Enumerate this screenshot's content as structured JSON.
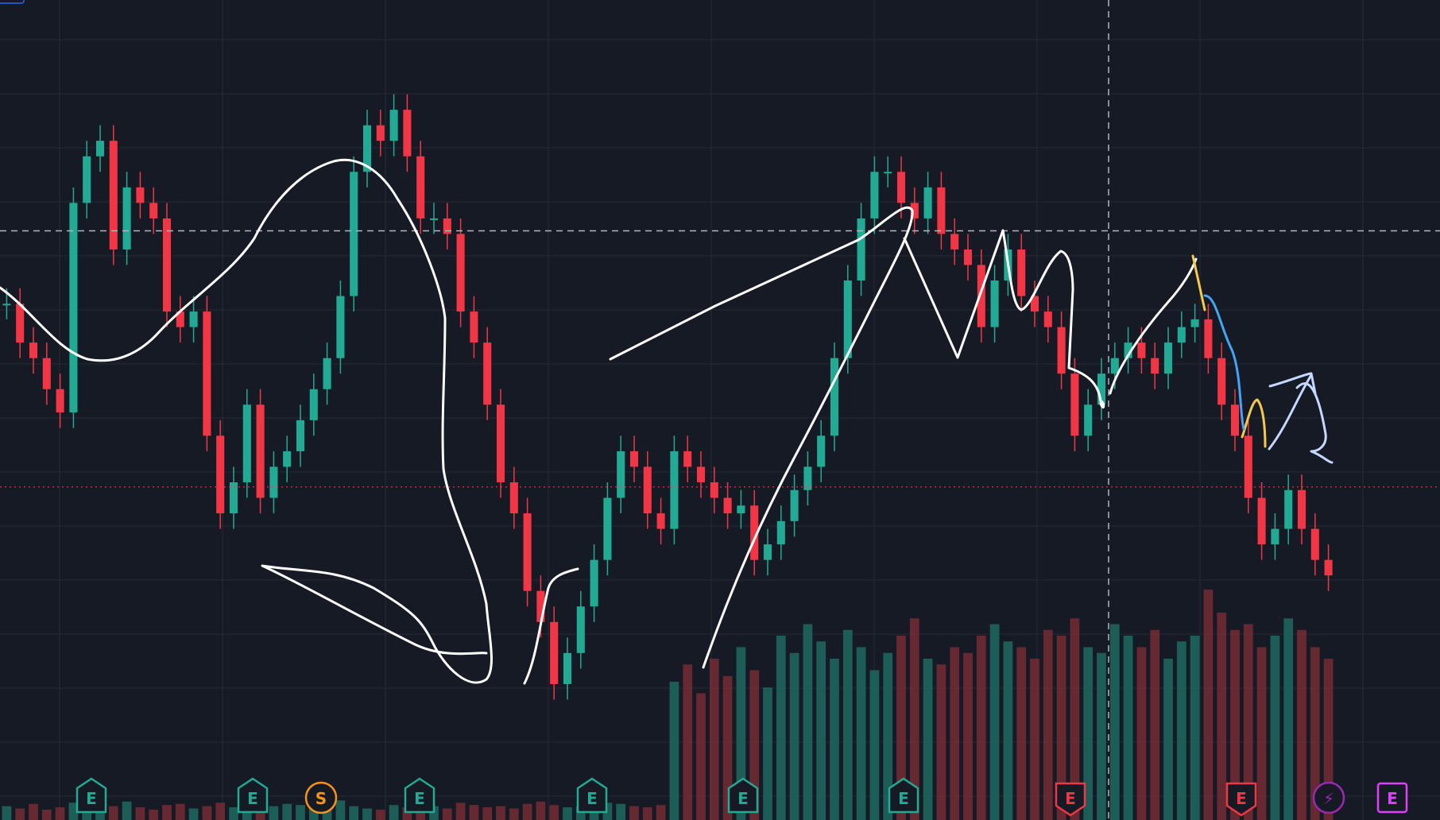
{
  "chart_data": {
    "type": "candlestick",
    "x": [
      0,
      1,
      2,
      3,
      4,
      5,
      6,
      7,
      8,
      9,
      10,
      11,
      12,
      13,
      14,
      15,
      16,
      17,
      18,
      19,
      20,
      21,
      22,
      23,
      24,
      25,
      26,
      27,
      28,
      29,
      30,
      31,
      32,
      33,
      34,
      35,
      36,
      37,
      38,
      39,
      40,
      41,
      42,
      43,
      44,
      45,
      46,
      47,
      48,
      49,
      50,
      51,
      52,
      53,
      54,
      55,
      56,
      57,
      58,
      59,
      60,
      61,
      62,
      63,
      64,
      65,
      66,
      67,
      68,
      69,
      70,
      71,
      72,
      73,
      74,
      75,
      76,
      77,
      78,
      79,
      80,
      81,
      82,
      83,
      84,
      85,
      86,
      87,
      88,
      89,
      90,
      91,
      92,
      93,
      94,
      95,
      96,
      97,
      98,
      99
    ],
    "close": [
      265,
      240,
      230,
      210,
      195,
      330,
      360,
      370,
      300,
      340,
      330,
      320,
      260,
      250,
      260,
      180,
      130,
      150,
      200,
      140,
      160,
      170,
      190,
      210,
      230,
      270,
      350,
      380,
      370,
      390,
      360,
      320,
      320,
      310,
      260,
      240,
      200,
      150,
      130,
      80,
      60,
      20,
      40,
      70,
      100,
      140,
      170,
      160,
      130,
      120,
      170,
      160,
      150,
      140,
      130,
      135,
      100,
      110,
      125,
      145,
      160,
      180,
      230,
      280,
      320,
      350,
      350,
      330,
      320,
      340,
      310,
      300,
      290,
      250,
      280,
      300,
      270,
      260,
      250,
      220,
      180,
      200,
      220,
      230,
      240,
      230,
      220,
      240,
      250,
      255,
      230,
      200,
      180,
      140,
      110,
      120,
      145,
      120,
      100,
      90
    ],
    "volume": [
      12,
      10,
      14,
      9,
      11,
      15,
      13,
      10,
      12,
      16,
      11,
      9,
      13,
      14,
      10,
      12,
      15,
      11,
      10,
      9,
      12,
      14,
      13,
      10,
      11,
      17,
      12,
      10,
      9,
      13,
      11,
      14,
      12,
      10,
      15,
      13,
      11,
      12,
      10,
      14,
      16,
      13,
      11,
      12,
      10,
      15,
      14,
      12,
      11,
      13,
      120,
      135,
      110,
      140,
      125,
      150,
      130,
      115,
      160,
      145,
      170,
      155,
      140,
      165,
      150,
      130,
      145,
      160,
      175,
      140,
      135,
      150,
      145,
      160,
      170,
      155,
      150,
      140,
      165,
      160,
      175,
      150,
      145,
      170,
      160,
      150,
      165,
      140,
      155,
      160,
      200,
      180,
      165,
      170,
      150,
      160,
      175,
      165,
      150,
      140
    ],
    "reference_levels": {
      "dashed_grey": 312,
      "dotted_red": 147
    },
    "ylim": [
      0,
      430
    ],
    "grid": true,
    "event_markers": [
      {
        "letter": "E",
        "color": "#22ab94"
      },
      {
        "letter": "E",
        "color": "#22ab94"
      },
      {
        "letter": "S",
        "color": "#f7931a"
      },
      {
        "letter": "E",
        "color": "#22ab94"
      },
      {
        "letter": "E",
        "color": "#22ab94"
      },
      {
        "letter": "E",
        "color": "#22ab94"
      },
      {
        "letter": "E",
        "color": "#22ab94"
      },
      {
        "letter": "E",
        "color": "#f23645"
      },
      {
        "letter": "E",
        "color": "#f23645"
      },
      {
        "letter": "⚡",
        "color": "#9c27b0"
      },
      {
        "letter": "E",
        "color": "#e040fb"
      }
    ]
  },
  "colors": {
    "background": "#161a25",
    "grid": "#252b38",
    "up": "#22ab94",
    "down": "#f23645",
    "volume_up": "#1e6e64",
    "volume_down": "#7a2c35",
    "drawing": "#ffffff",
    "drawing_yellow": "#f7c948",
    "drawing_blue": "#42a5f5",
    "drawing_lightblue": "#c5d8ff",
    "crosshair": "#b2b5be",
    "price_line": "#f23645"
  }
}
